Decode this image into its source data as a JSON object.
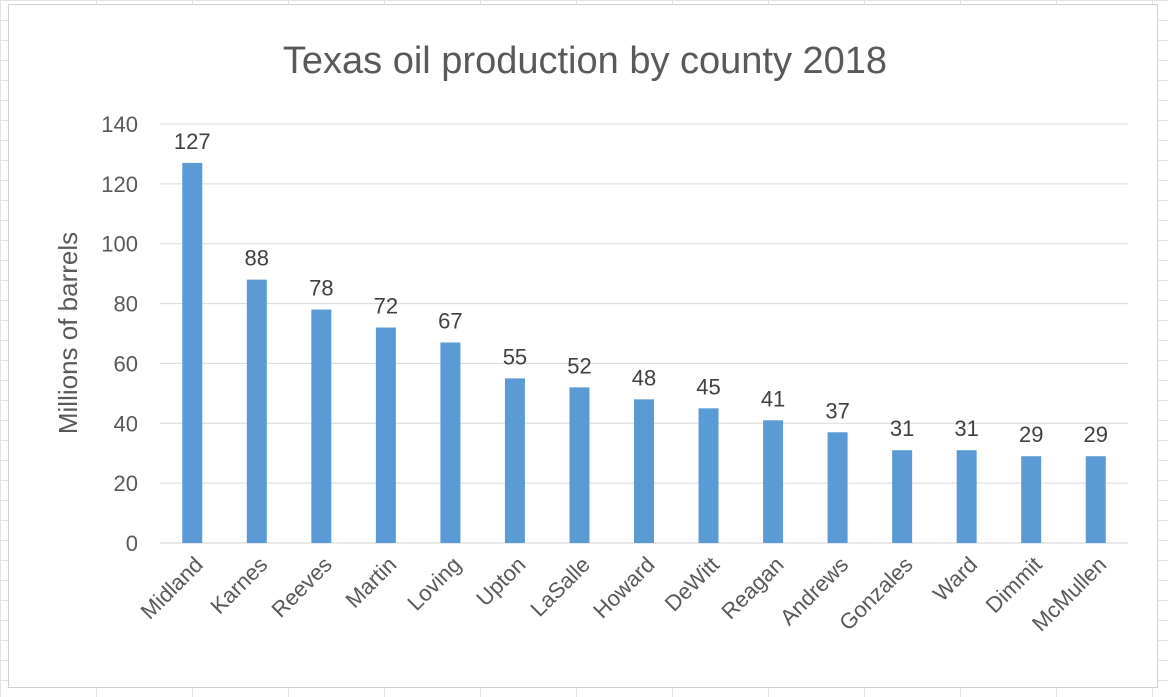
{
  "chart_data": {
    "type": "bar",
    "title": "Texas oil production by county 2018",
    "xlabel": "",
    "ylabel": "Millions of barrels",
    "ylim": [
      0,
      140
    ],
    "yticks": [
      0,
      20,
      40,
      60,
      80,
      100,
      120,
      140
    ],
    "grid": true,
    "legend": "none",
    "bar_color": "#5B9BD5",
    "categories": [
      "Midland",
      "Karnes",
      "Reeves",
      "Martin",
      "Loving",
      "Upton",
      "LaSalle",
      "Howard",
      "DeWitt",
      "Reagan",
      "Andrews",
      "Gonzales",
      "Ward",
      "Dimmit",
      "McMullen"
    ],
    "values": [
      127,
      88,
      78,
      72,
      67,
      55,
      52,
      48,
      45,
      41,
      37,
      31,
      31,
      29,
      29
    ]
  }
}
